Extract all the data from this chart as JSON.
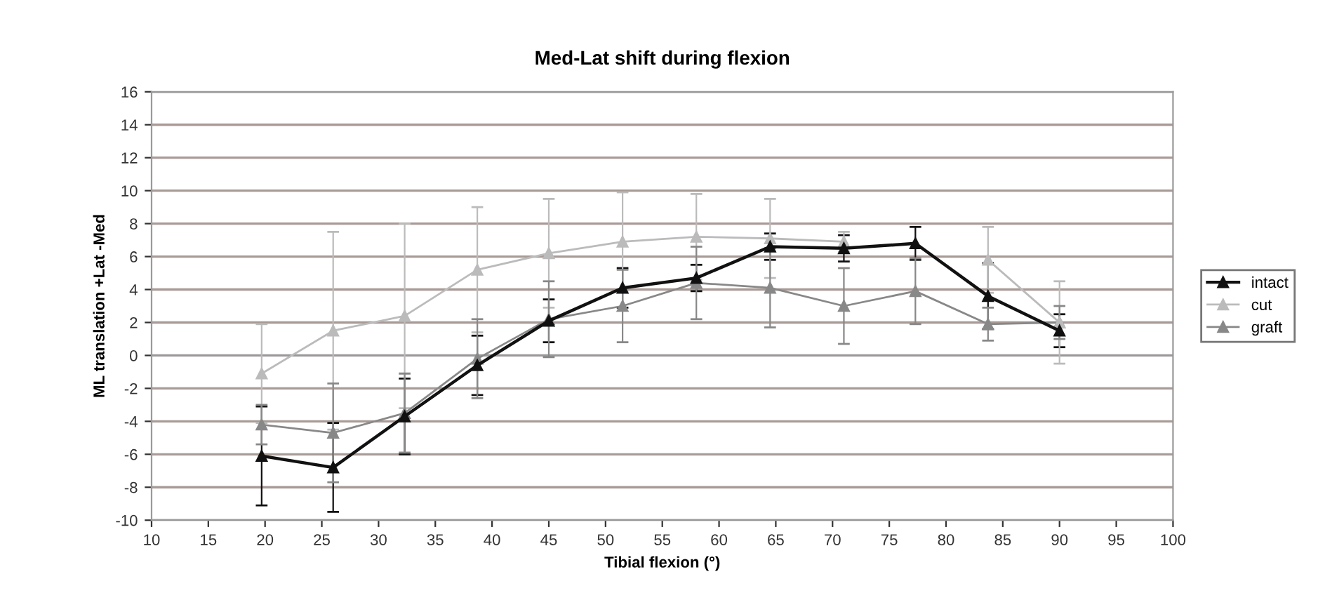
{
  "chart_data": {
    "type": "line",
    "title": "Med-Lat shift during flexion",
    "xlabel": "Tibial flexion (°)",
    "ylabel": "ML translation +Lat -Med",
    "x": [
      19.7,
      26,
      32.3,
      38.7,
      45,
      51.5,
      58,
      64.5,
      71,
      77.3,
      83.7,
      90
    ],
    "series": [
      {
        "name": "intact",
        "color": "#111111",
        "values": [
          -6.1,
          -6.8,
          -3.7,
          -0.6,
          2.1,
          4.1,
          4.7,
          6.6,
          6.5,
          6.8,
          3.6,
          1.5
        ],
        "errors": [
          3,
          2.7,
          2.3,
          1.8,
          1.3,
          1.2,
          0.8,
          0.8,
          0.8,
          1,
          2,
          1
        ]
      },
      {
        "name": "cut",
        "color": "#bbbbbb",
        "values": [
          -1.1,
          1.5,
          2.4,
          5.2,
          6.2,
          6.9,
          7.2,
          7.1,
          6.9,
          null,
          5.8,
          2.0
        ],
        "errors": [
          3,
          6,
          5.6,
          3.8,
          3.3,
          3,
          2.6,
          2.4,
          0.6,
          null,
          2,
          2.5
        ]
      },
      {
        "name": "graft",
        "color": "#888888",
        "values": [
          -4.2,
          -4.7,
          -3.5,
          -0.2,
          2.2,
          3.0,
          4.4,
          4.1,
          3.0,
          3.9,
          1.9,
          2.0
        ],
        "errors": [
          1.2,
          3,
          2.4,
          2.4,
          2.3,
          2.2,
          2.2,
          2.4,
          2.3,
          2,
          1,
          1
        ]
      }
    ],
    "xlim": [
      10,
      100
    ],
    "xticks": [
      10,
      15,
      20,
      25,
      30,
      35,
      40,
      45,
      50,
      55,
      60,
      65,
      70,
      75,
      80,
      85,
      90,
      95,
      100
    ],
    "ylim": [
      -10,
      16
    ],
    "yticks": [
      -10,
      -8,
      -6,
      -4,
      -2,
      0,
      2,
      4,
      6,
      8,
      10,
      12,
      14,
      16
    ],
    "grid": "y",
    "legend": "right",
    "marker": "triangle",
    "line_style": "solid"
  }
}
